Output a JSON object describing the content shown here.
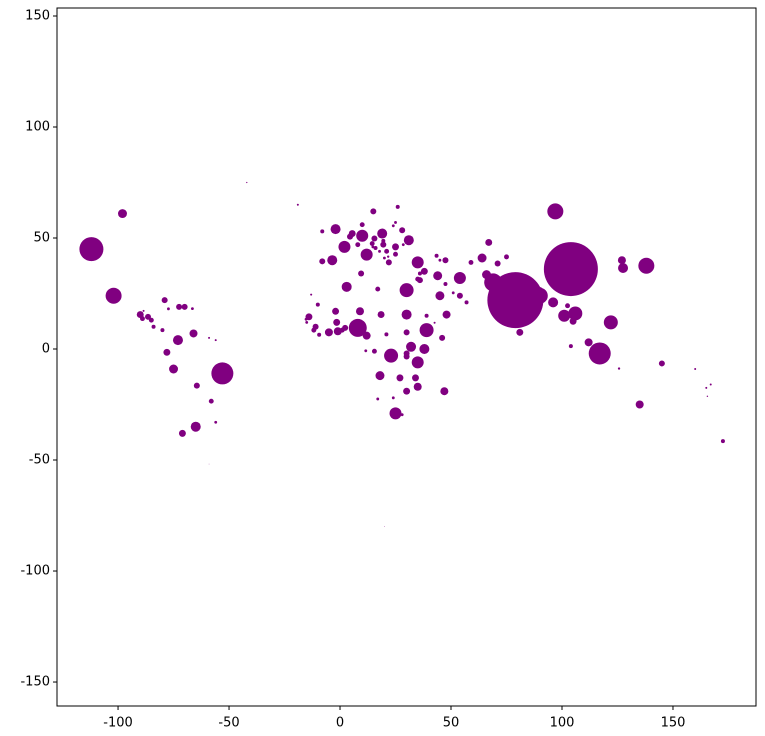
{
  "chart_data": {
    "type": "scatter",
    "color": "#800080",
    "xlim": [
      -127.5,
      187.4
    ],
    "ylim": [
      -160.8,
      153.6
    ],
    "xticks": [
      -100,
      -50,
      0,
      50,
      100,
      150
    ],
    "yticks": [
      -150,
      -100,
      -50,
      0,
      50,
      100,
      150
    ],
    "x": [
      104,
      79,
      -112,
      117,
      -53,
      69,
      8,
      90,
      97,
      -102,
      138,
      39,
      122,
      30,
      106,
      23,
      35,
      54,
      10,
      101,
      -2,
      2,
      12,
      25,
      35,
      96,
      38,
      127.5,
      -73,
      -3.5,
      32,
      -65,
      3,
      30,
      31,
      44,
      66,
      19,
      -98,
      45,
      64,
      -75,
      18,
      112,
      35,
      -1,
      48,
      84,
      -66,
      47,
      12,
      -5,
      127,
      135,
      9,
      81,
      -1.5,
      -2,
      25,
      34,
      -71,
      67,
      27,
      -90,
      -78,
      38,
      5.5,
      -14,
      105,
      18.5,
      46,
      30,
      -11,
      30,
      2.3,
      30,
      9.5,
      -64.5,
      4.5,
      -72.5,
      -79,
      30,
      -70,
      15.5,
      22,
      36,
      -8,
      47.5,
      15,
      -86.5,
      54,
      19.5,
      71,
      28,
      14.5,
      145,
      21,
      35,
      8,
      1,
      -11.8,
      102.5,
      -58,
      17,
      25,
      36,
      -85,
      75,
      -89,
      59,
      104,
      10,
      26,
      15.5,
      19.5,
      57,
      -84,
      -9.4,
      -8,
      172.5,
      20.9,
      -10,
      -80,
      47.5,
      16,
      43.5,
      39,
      -56,
      103,
      17.8,
      -66.5,
      45,
      20,
      24,
      -77.3,
      51,
      17,
      -15.3,
      24,
      11.6,
      28,
      14.8,
      25,
      -15,
      125.7,
      160,
      165,
      167,
      165.5,
      -19,
      -42,
      -88.5,
      -59,
      -56,
      -13,
      90.4,
      42.6,
      21.7,
      28.5,
      20,
      -59
    ],
    "y": [
      36,
      22,
      45,
      -2,
      -11,
      30,
      9.5,
      24,
      62,
      24,
      37.5,
      8.5,
      12,
      26.5,
      16,
      -3,
      39,
      32,
      51,
      15,
      54,
      46,
      42.5,
      -29,
      -6,
      21,
      0,
      36.5,
      4,
      40,
      1,
      -35,
      28,
      15.5,
      49,
      33,
      33.5,
      52,
      61,
      24,
      41,
      -9,
      -12,
      3,
      -17,
      8,
      15.5,
      28,
      7,
      -19,
      6,
      7.5,
      40,
      -25,
      17,
      7.5,
      12,
      17,
      46,
      -13,
      -38,
      48,
      -13,
      15.5,
      -1.5,
      35,
      52,
      14.5,
      12.5,
      15.5,
      5,
      -19,
      10,
      -2,
      9.5,
      -3.4,
      34,
      -16.5,
      50.6,
      19,
      22,
      7.5,
      19,
      49.8,
      39,
      31,
      39.5,
      40,
      62,
      14.5,
      24,
      47,
      38.5,
      53.5,
      47.5,
      -6.5,
      44,
      31.5,
      47,
      8.5,
      8.5,
      19.5,
      -23.5,
      27,
      42.7,
      34,
      13,
      41.5,
      13.7,
      39,
      1.3,
      56,
      64,
      -1,
      48.7,
      21,
      10,
      6.4,
      53,
      -41.5,
      6.6,
      20,
      8.5,
      29.3,
      45.5,
      42,
      15,
      -33,
      46.8,
      44,
      18.2,
      40,
      41,
      55.5,
      18.1,
      25.3,
      -22.5,
      13.4,
      -22,
      -0.8,
      -29.6,
      46,
      57,
      12,
      -8.8,
      -9,
      -17.5,
      -16,
      -21.3,
      65,
      75,
      17.2,
      5,
      4,
      24.5,
      27.4,
      11.8,
      41.6,
      47,
      -80,
      -51.8
    ],
    "sizes": [
      729,
      784,
      144,
      121,
      121,
      81,
      81,
      64,
      64,
      64,
      64,
      49,
      49,
      49,
      49,
      49,
      36,
      36,
      36,
      36,
      25,
      36,
      36,
      36,
      36,
      25,
      25,
      25,
      25,
      25,
      25,
      25,
      25,
      25,
      25,
      20,
      20,
      25,
      20,
      20,
      20,
      20,
      20,
      16,
      16,
      16,
      16,
      12,
      16,
      16,
      16,
      16,
      16,
      16,
      16,
      12,
      12,
      12,
      12,
      12,
      12,
      12,
      12,
      12,
      12,
      12,
      12,
      12,
      12,
      12,
      9,
      12,
      9,
      9,
      9,
      9,
      9,
      9,
      9,
      9,
      9,
      9,
      9,
      9,
      9,
      9,
      9,
      9,
      9,
      9,
      9,
      9,
      9,
      9,
      6,
      9,
      6,
      6,
      6,
      6,
      6,
      6,
      6,
      6,
      6,
      4,
      6,
      6,
      6,
      6,
      4,
      6,
      4,
      6,
      4,
      4,
      4,
      4,
      4,
      4,
      4,
      4,
      4,
      4,
      4,
      4,
      4,
      2,
      4,
      2,
      2,
      2,
      2,
      2,
      2,
      2,
      2,
      2,
      2,
      2,
      2,
      2,
      2,
      2,
      1.4,
      1,
      1,
      1,
      0.5,
      1,
      0.4,
      1,
      1,
      1,
      1,
      1,
      1,
      1.4,
      2,
      0.1,
      0.1
    ]
  }
}
